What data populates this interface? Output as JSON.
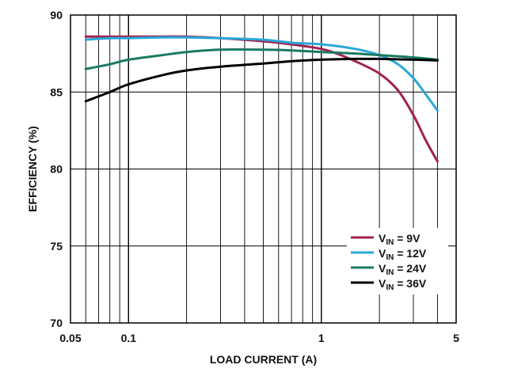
{
  "chart_data": {
    "type": "line",
    "title": "",
    "xlabel": "LOAD CURRENT (A)",
    "ylabel": "EFFICIENCY (%)",
    "xscale": "log",
    "xlim": [
      0.05,
      5
    ],
    "ylim": [
      70,
      90
    ],
    "x_ticks": [
      0.05,
      0.1,
      1,
      5
    ],
    "x_tick_labels": [
      "0.05",
      "0.1",
      "1",
      "5"
    ],
    "y_ticks": [
      70,
      75,
      80,
      85,
      90
    ],
    "y_tick_labels": [
      "70",
      "75",
      "80",
      "85",
      "90"
    ],
    "grid": true,
    "legend_position": "bottom-right",
    "series": [
      {
        "name": "VIN = 9V",
        "label_main": "V",
        "label_sub": "IN",
        "label_rest": " = 9V",
        "color": "#a0224f",
        "x": [
          0.06,
          0.08,
          0.1,
          0.15,
          0.2,
          0.3,
          0.5,
          0.7,
          1.0,
          1.2,
          1.5,
          2.0,
          2.5,
          3.0,
          3.5,
          4.0
        ],
        "y": [
          88.6,
          88.6,
          88.6,
          88.6,
          88.6,
          88.5,
          88.3,
          88.1,
          87.8,
          87.5,
          87.0,
          86.2,
          85.1,
          83.5,
          81.8,
          80.5
        ]
      },
      {
        "name": "VIN = 12V",
        "label_main": "V",
        "label_sub": "IN",
        "label_rest": " = 12V",
        "color": "#2aa8d8",
        "x": [
          0.06,
          0.08,
          0.1,
          0.15,
          0.2,
          0.3,
          0.5,
          0.7,
          1.0,
          1.5,
          2.0,
          2.5,
          3.0,
          3.5,
          4.0
        ],
        "y": [
          88.4,
          88.5,
          88.5,
          88.55,
          88.55,
          88.5,
          88.4,
          88.2,
          88.1,
          87.8,
          87.4,
          86.8,
          85.9,
          84.8,
          83.8
        ]
      },
      {
        "name": "VIN = 24V",
        "label_main": "V",
        "label_sub": "IN",
        "label_rest": " = 24V",
        "color": "#1b7a62",
        "x": [
          0.06,
          0.08,
          0.1,
          0.15,
          0.2,
          0.3,
          0.5,
          0.7,
          1.0,
          1.5,
          2.0,
          3.0,
          4.0
        ],
        "y": [
          86.5,
          86.8,
          87.1,
          87.4,
          87.6,
          87.75,
          87.75,
          87.7,
          87.6,
          87.5,
          87.4,
          87.25,
          87.1
        ]
      },
      {
        "name": "VIN = 36V",
        "label_main": "V",
        "label_sub": "IN",
        "label_rest": " = 36V",
        "color": "#000000",
        "x": [
          0.06,
          0.08,
          0.1,
          0.15,
          0.2,
          0.3,
          0.5,
          0.7,
          1.0,
          1.5,
          2.0,
          3.0,
          4.0
        ],
        "y": [
          84.4,
          85.0,
          85.5,
          86.1,
          86.4,
          86.65,
          86.85,
          87.0,
          87.1,
          87.15,
          87.15,
          87.1,
          87.05
        ]
      }
    ]
  }
}
